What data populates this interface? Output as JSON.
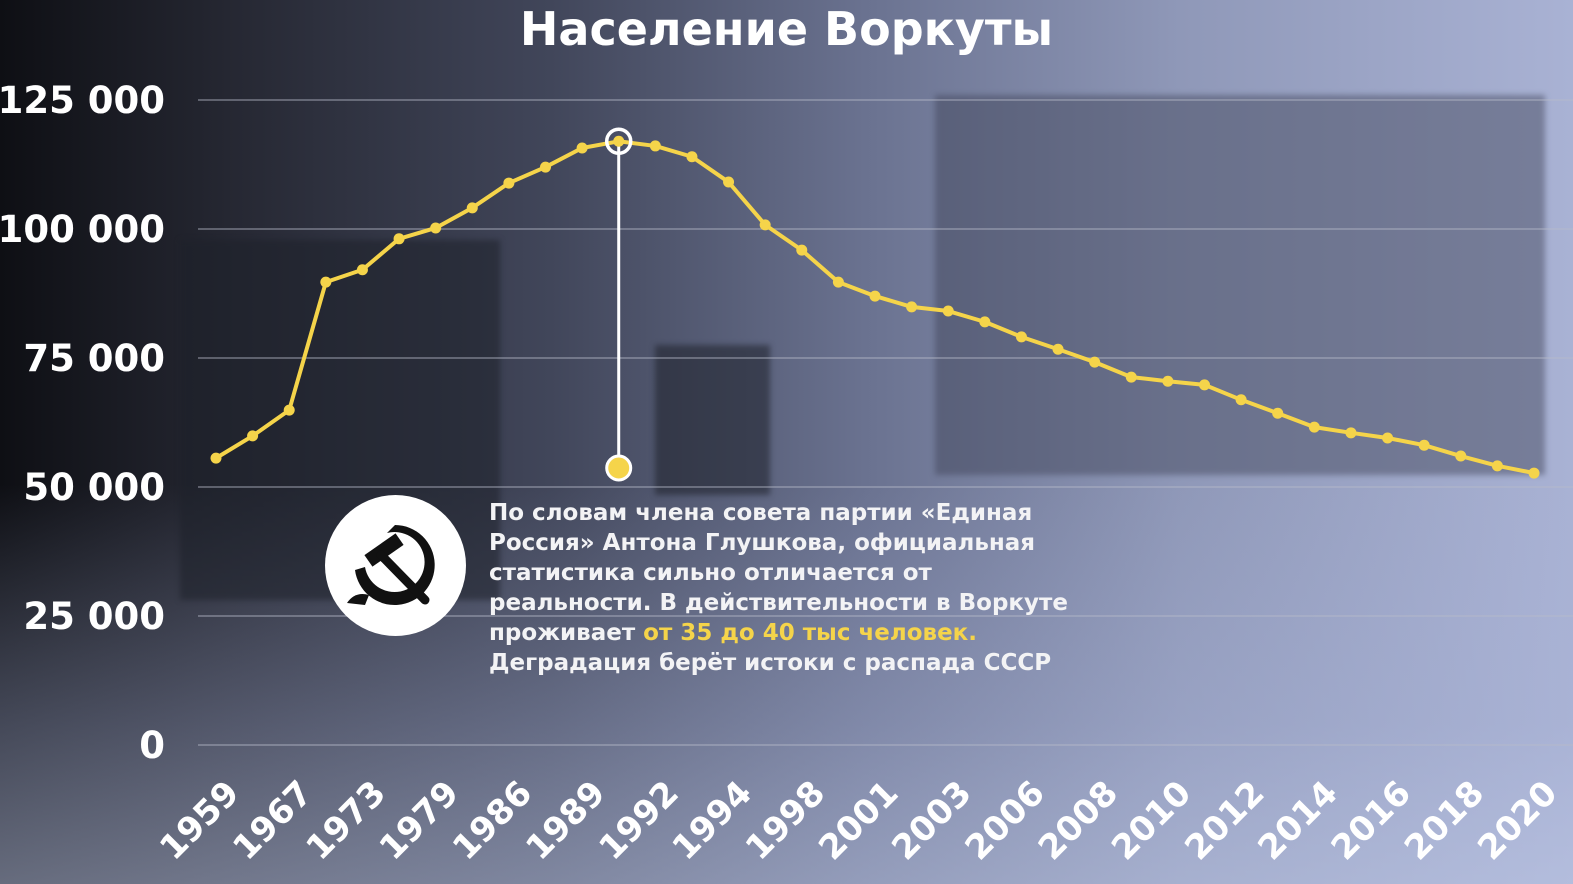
{
  "chart_data": {
    "type": "line",
    "title": "Население Воркуты",
    "xlabel": "",
    "ylabel": "",
    "ylim": [
      0,
      125000
    ],
    "yticks": [
      0,
      25000,
      50000,
      75000,
      100000,
      125000
    ],
    "ytick_labels": [
      "0",
      "25 000",
      "50 000",
      "75 000",
      "100 000",
      "125 000"
    ],
    "x_tick_labels": [
      "1959",
      "1967",
      "1973",
      "1979",
      "1986",
      "1989",
      "1992",
      "1994",
      "1998",
      "2001",
      "2003",
      "2006",
      "2008",
      "2010",
      "2012",
      "2014",
      "2016",
      "2018",
      "2020"
    ],
    "x_tick_every": 2,
    "values": [
      55600,
      59900,
      64900,
      89700,
      92100,
      98100,
      100200,
      104100,
      108900,
      112000,
      115700,
      117000,
      116100,
      114000,
      109100,
      100800,
      95900,
      89700,
      87000,
      84900,
      84100,
      82000,
      79100,
      76700,
      74200,
      71300,
      70500,
      69800,
      66900,
      64300,
      61600,
      60500,
      59500,
      58100,
      56000,
      54100,
      52700
    ],
    "highlight_index": 11,
    "grid": true,
    "colors": {
      "line": "#f5d44a",
      "grid": "#b8bccb",
      "highlight_ring": "#ffffff"
    }
  },
  "annotation": {
    "icon": "hammer-and-sickle-icon",
    "text_before": "По словам члена совета партии «Единая Россия» Антона Глушкова, официальная статистика сильно отличается от реальности. В действительности в Воркуте проживает ",
    "text_highlight": "от 35 до 40 тыс человек.",
    "text_after": " Деградация берёт истоки с распада СССР"
  }
}
